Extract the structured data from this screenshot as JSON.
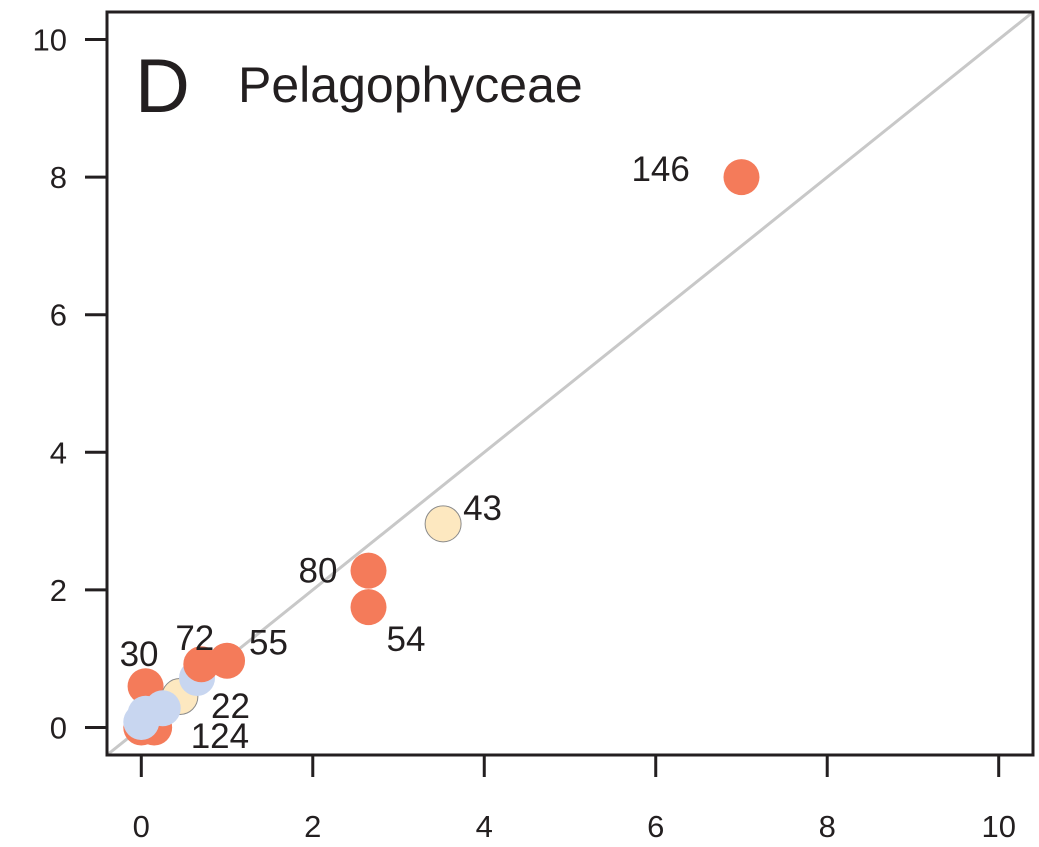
{
  "chart_data": {
    "type": "scatter",
    "panel_letter": "D",
    "title": "Pelagophyceae",
    "xlabel": "",
    "ylabel": "",
    "xlim": [
      -0.4,
      10.4
    ],
    "ylim": [
      -0.4,
      10.4
    ],
    "x_ticks": [
      0,
      2,
      4,
      6,
      8,
      10
    ],
    "y_ticks": [
      0,
      2,
      4,
      6,
      8,
      10
    ],
    "grid": false,
    "reference_line": "y = x",
    "colors": {
      "orange": "#f47b5a",
      "cream": "#fde8c0",
      "blue": "#c8d6f0",
      "line": "#c8c8c8",
      "axis": "#231f20"
    },
    "points": [
      {
        "x": 0.05,
        "y": 0.6,
        "color": "orange",
        "label": "30"
      },
      {
        "x": 0.0,
        "y": 0.0,
        "color": "orange",
        "label": ""
      },
      {
        "x": 0.15,
        "y": 0.0,
        "color": "orange",
        "label": ""
      },
      {
        "x": 0.45,
        "y": 0.45,
        "color": "cream",
        "label": ""
      },
      {
        "x": 0.65,
        "y": 0.72,
        "color": "blue",
        "label": "22"
      },
      {
        "x": 0.7,
        "y": 0.92,
        "color": "orange",
        "label": "72"
      },
      {
        "x": 1.0,
        "y": 0.97,
        "color": "orange",
        "label": "55"
      },
      {
        "x": 0.25,
        "y": 0.28,
        "color": "blue",
        "label": "124"
      },
      {
        "x": 0.05,
        "y": 0.2,
        "color": "blue",
        "label": ""
      },
      {
        "x": 0.0,
        "y": 0.08,
        "color": "blue",
        "label": ""
      },
      {
        "x": 2.65,
        "y": 2.28,
        "color": "orange",
        "label": "80"
      },
      {
        "x": 2.65,
        "y": 1.75,
        "color": "orange",
        "label": "54"
      },
      {
        "x": 3.52,
        "y": 2.96,
        "color": "cream",
        "label": "43"
      },
      {
        "x": 7.0,
        "y": 8.0,
        "color": "orange",
        "label": "146"
      }
    ]
  }
}
